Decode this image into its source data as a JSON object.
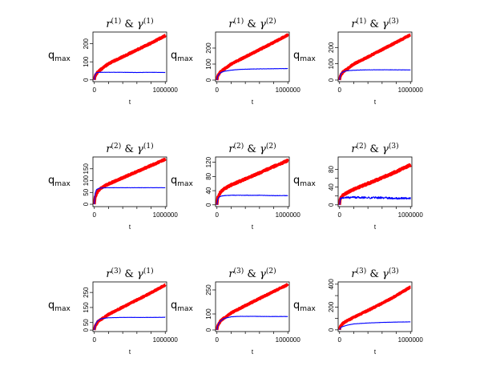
{
  "figure": {
    "rows": 3,
    "cols": 3
  },
  "chart_data": [
    {
      "type": "line",
      "title_r": "1",
      "title_gamma": "1",
      "ylabel_main": "q",
      "ylabel_sub": "max",
      "xlabel": "t",
      "x_tick_labels": [
        "0",
        "1000000"
      ],
      "xlim": [
        -20000,
        1020000
      ],
      "ylim": [
        -10,
        265
      ],
      "y_ticks": [
        0,
        100,
        200
      ],
      "y_tick_labels": [
        "0",
        "100",
        "200"
      ],
      "series": [
        {
          "name": "r",
          "color": "#ff0000",
          "x": [
            0,
            10000,
            50000,
            100000,
            200000,
            400000,
            600000,
            800000,
            1000000
          ],
          "y": [
            0,
            22,
            45,
            60,
            90,
            128,
            166,
            204,
            245
          ],
          "noise": 3
        },
        {
          "name": "gamma",
          "color": "#0000ff",
          "x": [
            0,
            10000,
            30000,
            60000,
            100000,
            200000,
            400000,
            600000,
            800000,
            1000000
          ],
          "y": [
            0,
            30,
            40,
            42,
            42,
            42,
            42,
            41,
            42,
            41
          ],
          "noise": 0.6
        }
      ]
    },
    {
      "type": "line",
      "title_r": "1",
      "title_gamma": "2",
      "ylabel_main": "q",
      "ylabel_sub": "max",
      "xlabel": "t",
      "x_tick_labels": [
        "0",
        "1000000"
      ],
      "xlim": [
        -20000,
        1020000
      ],
      "ylim": [
        -10,
        300
      ],
      "y_ticks": [
        0,
        100,
        200
      ],
      "y_tick_labels": [
        "0",
        "100",
        "200"
      ],
      "series": [
        {
          "name": "r",
          "color": "#ff0000",
          "x": [
            0,
            10000,
            50000,
            100000,
            200000,
            400000,
            600000,
            800000,
            1000000
          ],
          "y": [
            0,
            25,
            52,
            68,
            100,
            145,
            190,
            235,
            282
          ],
          "noise": 3
        },
        {
          "name": "gamma",
          "color": "#0000ff",
          "x": [
            0,
            10000,
            30000,
            60000,
            100000,
            200000,
            300000,
            400000,
            600000,
            800000,
            1000000
          ],
          "y": [
            0,
            25,
            38,
            48,
            55,
            62,
            66,
            68,
            70,
            71,
            72
          ],
          "noise": 0.8
        }
      ]
    },
    {
      "type": "line",
      "title_r": "1",
      "title_gamma": "3",
      "ylabel_main": "q",
      "ylabel_sub": "max",
      "xlabel": "t",
      "x_tick_labels": [
        "0",
        "1000000"
      ],
      "xlim": [
        -20000,
        1020000
      ],
      "ylim": [
        -10,
        295
      ],
      "y_ticks": [
        0,
        100,
        200
      ],
      "y_tick_labels": [
        "0",
        "100",
        "200"
      ],
      "series": [
        {
          "name": "r",
          "color": "#ff0000",
          "x": [
            0,
            10000,
            50000,
            100000,
            200000,
            400000,
            600000,
            800000,
            1000000
          ],
          "y": [
            0,
            25,
            50,
            66,
            98,
            142,
            187,
            232,
            278
          ],
          "noise": 3
        },
        {
          "name": "gamma",
          "color": "#0000ff",
          "x": [
            0,
            10000,
            30000,
            60000,
            100000,
            200000,
            300000,
            500000,
            700000,
            1000000
          ],
          "y": [
            0,
            30,
            45,
            52,
            57,
            60,
            62,
            63,
            63,
            62
          ],
          "noise": 0.8
        }
      ]
    },
    {
      "type": "line",
      "title_r": "2",
      "title_gamma": "1",
      "ylabel_main": "q",
      "ylabel_sub": "max",
      "xlabel": "t",
      "x_tick_labels": [
        "0",
        "1000000"
      ],
      "xlim": [
        -20000,
        1020000
      ],
      "ylim": [
        -10,
        200
      ],
      "y_ticks": [
        0,
        50,
        100,
        150
      ],
      "y_tick_labels": [
        "0",
        "50",
        "100",
        "150"
      ],
      "series": [
        {
          "name": "r",
          "color": "#ff0000",
          "x": [
            0,
            10000,
            50000,
            100000,
            200000,
            400000,
            600000,
            800000,
            1000000
          ],
          "y": [
            0,
            30,
            56,
            70,
            86,
            112,
            138,
            164,
            190
          ],
          "noise": 2.5
        },
        {
          "name": "gamma",
          "color": "#0000ff",
          "x": [
            0,
            10000,
            30000,
            60000,
            100000,
            200000,
            400000,
            600000,
            800000,
            1000000
          ],
          "y": [
            0,
            45,
            62,
            67,
            69,
            70,
            70,
            70,
            70,
            70
          ],
          "noise": 0.5
        }
      ]
    },
    {
      "type": "line",
      "title_r": "2",
      "title_gamma": "2",
      "ylabel_main": "q",
      "ylabel_sub": "max",
      "xlabel": "t",
      "x_tick_labels": [
        "0",
        "1000000"
      ],
      "xlim": [
        -20000,
        1020000
      ],
      "ylim": [
        -5,
        135
      ],
      "y_ticks": [
        0,
        40,
        80,
        120
      ],
      "y_tick_labels": [
        "0",
        "40",
        "80",
        "120"
      ],
      "series": [
        {
          "name": "r",
          "color": "#ff0000",
          "x": [
            0,
            10000,
            50000,
            100000,
            200000,
            400000,
            600000,
            800000,
            1000000
          ],
          "y": [
            0,
            20,
            36,
            45,
            56,
            73,
            90,
            108,
            125
          ],
          "noise": 2
        },
        {
          "name": "gamma",
          "color": "#0000ff",
          "x": [
            0,
            10000,
            30000,
            60000,
            100000,
            200000,
            400000,
            600000,
            800000,
            1000000
          ],
          "y": [
            0,
            15,
            22,
            25,
            26,
            27,
            27,
            27,
            26,
            26
          ],
          "noise": 0.6
        }
      ]
    },
    {
      "type": "line",
      "title_r": "2",
      "title_gamma": "3",
      "ylabel_main": "q",
      "ylabel_sub": "max",
      "xlabel": "t",
      "x_tick_labels": [
        "0",
        "1000000"
      ],
      "xlim": [
        -20000,
        1020000
      ],
      "ylim": [
        -4,
        108
      ],
      "y_ticks": [
        0,
        20,
        40,
        60,
        80
      ],
      "y_tick_labels": [
        "0",
        "",
        "40",
        "",
        "80"
      ],
      "series": [
        {
          "name": "r",
          "color": "#ff0000",
          "x": [
            0,
            10000,
            50000,
            100000,
            200000,
            400000,
            600000,
            800000,
            1000000
          ],
          "y": [
            0,
            14,
            22,
            27,
            35,
            48,
            61,
            75,
            90
          ],
          "noise": 1.8
        },
        {
          "name": "gamma",
          "color": "#0000ff",
          "x": [
            0,
            10000,
            30000,
            60000,
            100000,
            200000,
            400000,
            600000,
            800000,
            1000000
          ],
          "y": [
            0,
            14,
            15,
            16,
            16,
            17,
            16,
            16,
            15,
            15
          ],
          "noise": 2.2
        }
      ]
    },
    {
      "type": "line",
      "title_r": "3",
      "title_gamma": "1",
      "ylabel_main": "q",
      "ylabel_sub": "max",
      "xlabel": "t",
      "x_tick_labels": [
        "0",
        "1000000"
      ],
      "xlim": [
        -20000,
        1020000
      ],
      "ylim": [
        -10,
        320
      ],
      "y_ticks": [
        0,
        50,
        150,
        250
      ],
      "y_tick_labels": [
        "0",
        "50",
        "150",
        "250"
      ],
      "series": [
        {
          "name": "r",
          "color": "#ff0000",
          "x": [
            0,
            10000,
            50000,
            100000,
            200000,
            400000,
            600000,
            800000,
            1000000
          ],
          "y": [
            0,
            26,
            55,
            72,
            104,
            152,
            200,
            248,
            300
          ],
          "noise": 3
        },
        {
          "name": "gamma",
          "color": "#0000ff",
          "x": [
            0,
            10000,
            30000,
            60000,
            100000,
            200000,
            400000,
            600000,
            800000,
            1000000
          ],
          "y": [
            0,
            30,
            52,
            66,
            76,
            82,
            84,
            84,
            84,
            85
          ],
          "noise": 0.7
        }
      ]
    },
    {
      "type": "line",
      "title_r": "3",
      "title_gamma": "2",
      "ylabel_main": "q",
      "ylabel_sub": "max",
      "xlabel": "t",
      "x_tick_labels": [
        "0",
        "1000000"
      ],
      "xlim": [
        -20000,
        1020000
      ],
      "ylim": [
        -10,
        300
      ],
      "y_ticks": [
        0,
        100,
        250
      ],
      "y_tick_labels": [
        "0",
        "100",
        "250"
      ],
      "series": [
        {
          "name": "r",
          "color": "#ff0000",
          "x": [
            0,
            10000,
            50000,
            100000,
            200000,
            400000,
            600000,
            800000,
            1000000
          ],
          "y": [
            0,
            26,
            56,
            74,
            106,
            152,
            196,
            240,
            284
          ],
          "noise": 3
        },
        {
          "name": "gamma",
          "color": "#0000ff",
          "x": [
            0,
            10000,
            30000,
            60000,
            100000,
            200000,
            300000,
            500000,
            700000,
            1000000
          ],
          "y": [
            0,
            25,
            45,
            60,
            72,
            82,
            85,
            85,
            84,
            84
          ],
          "noise": 0.8
        }
      ]
    },
    {
      "type": "line",
      "title_r": "3",
      "title_gamma": "3",
      "ylabel_main": "q",
      "ylabel_sub": "max",
      "xlabel": "t",
      "x_tick_labels": [
        "0",
        "1000000"
      ],
      "xlim": [
        -20000,
        1020000
      ],
      "ylim": [
        -15,
        420
      ],
      "y_ticks": [
        0,
        100,
        200,
        300,
        400
      ],
      "y_tick_labels": [
        "0",
        "",
        "200",
        "",
        "400"
      ],
      "series": [
        {
          "name": "r",
          "color": "#ff0000",
          "x": [
            0,
            10000,
            50000,
            100000,
            200000,
            400000,
            600000,
            800000,
            1000000
          ],
          "y": [
            0,
            28,
            58,
            78,
            110,
            170,
            232,
            300,
            375
          ],
          "noise": 4
        },
        {
          "name": "gamma",
          "color": "#0000ff",
          "x": [
            0,
            10000,
            30000,
            60000,
            100000,
            200000,
            400000,
            600000,
            800000,
            1000000
          ],
          "y": [
            0,
            15,
            25,
            32,
            40,
            52,
            60,
            65,
            68,
            70
          ],
          "noise": 0.8
        }
      ]
    }
  ]
}
